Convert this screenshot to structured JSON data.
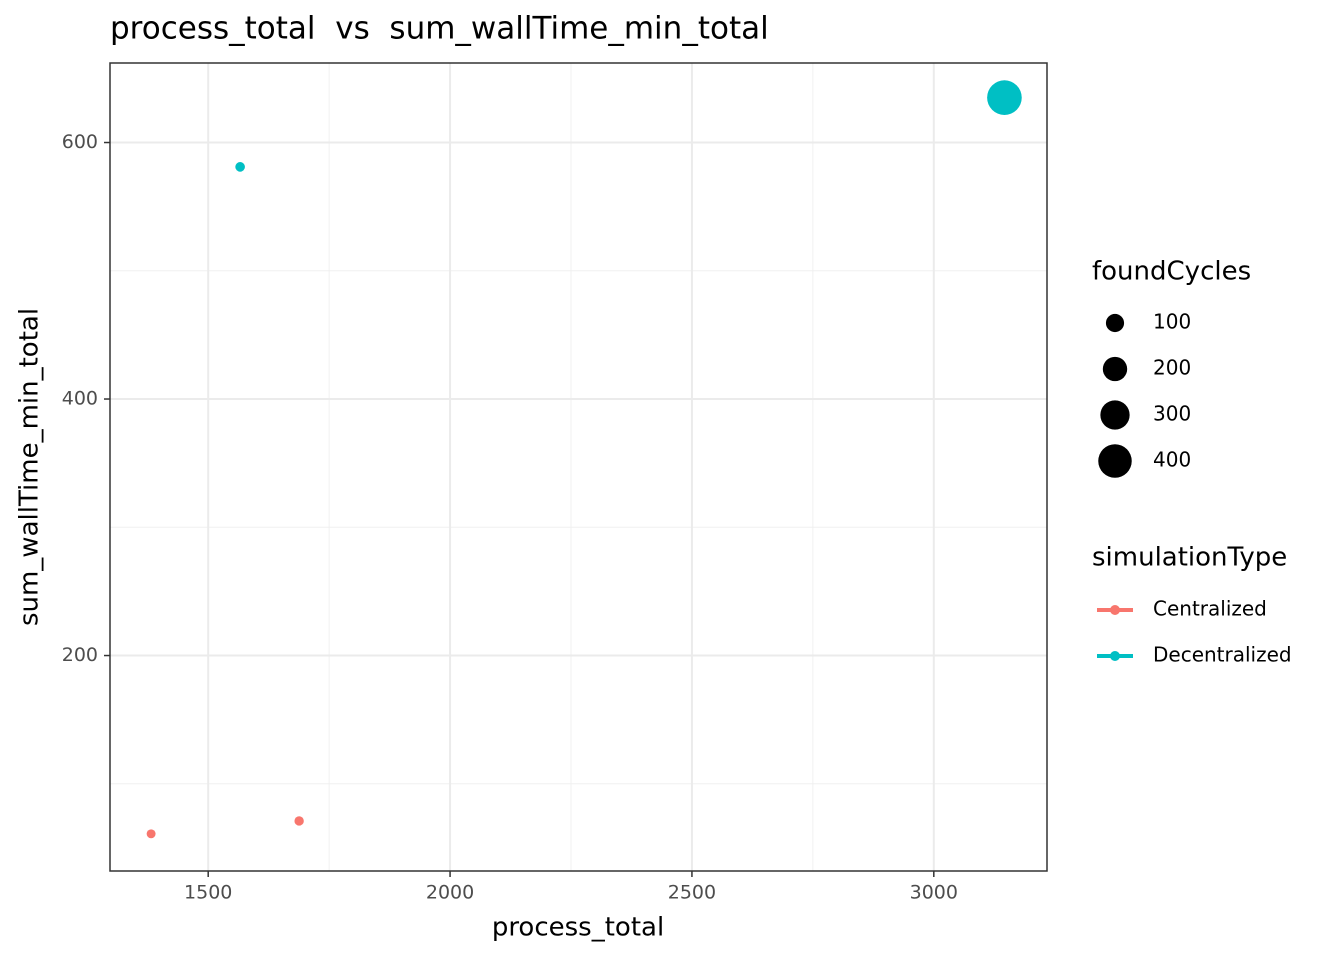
{
  "chart_data": {
    "type": "scatter",
    "title": "process_total  vs  sum_wallTime_min_total",
    "x_label": "process_total",
    "y_label": "sum_wallTime_min_total",
    "xlim": [
      1297,
      3234
    ],
    "xticks": [
      1500,
      2000,
      2500,
      3000
    ],
    "xminor": [
      1750,
      2250,
      2750
    ],
    "ylim": [
      32,
      662
    ],
    "yticks": [
      200,
      400,
      600
    ],
    "yminor": [
      100,
      300,
      500
    ],
    "grid": true,
    "size_legend": {
      "title": "foundCycles",
      "values": [
        100,
        200,
        300,
        400
      ]
    },
    "color_legend_title": "simulationType",
    "series": [
      {
        "name": "Centralized",
        "color": "#F8766D",
        "x": [
          1382,
          1688
        ],
        "values": [
          61,
          71
        ],
        "sizes": [
          5,
          8
        ]
      },
      {
        "name": "Decentralized",
        "color": "#00BFC4",
        "x": [
          1566,
          3146
        ],
        "values": [
          581,
          635
        ],
        "sizes": [
          10,
          430
        ]
      }
    ]
  }
}
